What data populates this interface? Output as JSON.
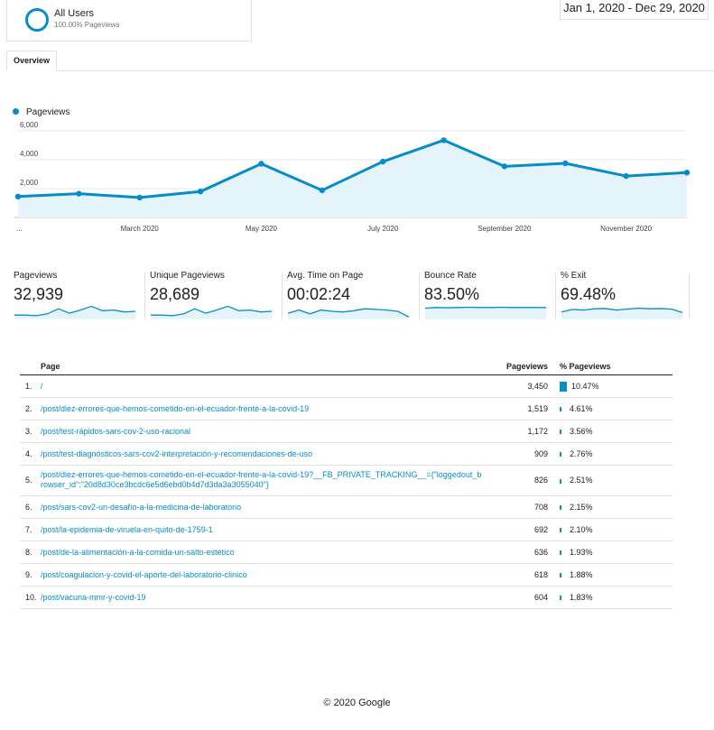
{
  "segment": {
    "name": "All Users",
    "subtitle": "100.00% Pageviews",
    "color": "#058dc7"
  },
  "date_range": "Jan 1, 2020 - Dec 29, 2020",
  "tabs": [
    {
      "label": "Overview",
      "active": true
    }
  ],
  "chart_data": {
    "type": "area",
    "series": [
      {
        "name": "Pageviews",
        "color": "#058dc7",
        "values": [
          1450,
          1650,
          1380,
          1800,
          3720,
          1880,
          3870,
          5350,
          3540,
          3750,
          2870,
          3110
        ]
      }
    ],
    "x_labels": [
      "...",
      "March 2020",
      "May 2020",
      "July 2020",
      "September 2020",
      "November 2020"
    ],
    "y_ticks": [
      "2,000",
      "4,000",
      "6,000"
    ],
    "ylim": [
      0,
      6000
    ],
    "grid": true,
    "legend": "top-left"
  },
  "metrics": [
    {
      "label": "Pageviews",
      "value": "32,939"
    },
    {
      "label": "Unique Pageviews",
      "value": "28,689"
    },
    {
      "label": "Avg. Time on Page",
      "value": "00:02:24"
    },
    {
      "label": "Bounce Rate",
      "value": "83.50%"
    },
    {
      "label": "% Exit",
      "value": "69.48%"
    }
  ],
  "table": {
    "headers": {
      "page": "Page",
      "pageviews": "Pageviews",
      "pct": "% Pageviews"
    },
    "rows": [
      {
        "idx": "1.",
        "page": "/",
        "pageviews": "3,450",
        "pct": "10.47%",
        "share": 10.47
      },
      {
        "idx": "2.",
        "page": "/post/diez-errores-que-hemos-cometido-en-el-ecuador-frente-a-la-covid-19",
        "pageviews": "1,519",
        "pct": "4.61%",
        "share": 4.61
      },
      {
        "idx": "3.",
        "page": "/post/test-rápidos-sars-cov-2-uso-racional",
        "pageviews": "1,172",
        "pct": "3.56%",
        "share": 3.56
      },
      {
        "idx": "4.",
        "page": "/post/test-diagnósticos-sars-cov2-interpretación-y-recomendaciones-de-uso",
        "pageviews": "909",
        "pct": "2.76%",
        "share": 2.76
      },
      {
        "idx": "5.",
        "page": "/post/diez-errores-que-hemos-cometido-en-el-ecuador-frente-a-la-covid-19?__FB_PRIVATE_TRACKING__={\"loggedout_browser_id\":\"20d8d30ce3bcdc6e5d6ebd0b4d7d3da3a3055040\"}",
        "pageviews": "826",
        "pct": "2.51%",
        "share": 2.51
      },
      {
        "idx": "6.",
        "page": "/post/sars-cov2-un-desafío-a-la-medicina-de-laboratorio",
        "pageviews": "708",
        "pct": "2.15%",
        "share": 2.15
      },
      {
        "idx": "7.",
        "page": "/post/la-epidemia-de-viruela-en-quito-de-1759-1",
        "pageviews": "692",
        "pct": "2.10%",
        "share": 2.1
      },
      {
        "idx": "8.",
        "page": "/post/de-la-alimentación-a-la-comida-un-salto-estético",
        "pageviews": "636",
        "pct": "1.93%",
        "share": 1.93
      },
      {
        "idx": "9.",
        "page": "/post/coagulacion-y-covid-el-aporte-del-laboratorio-clinico",
        "pageviews": "618",
        "pct": "1.88%",
        "share": 1.88
      },
      {
        "idx": "10.",
        "page": "/post/vacuna-mmr-y-covid-19",
        "pageviews": "604",
        "pct": "1.83%",
        "share": 1.83
      }
    ]
  },
  "footer": "© 2020 Google"
}
